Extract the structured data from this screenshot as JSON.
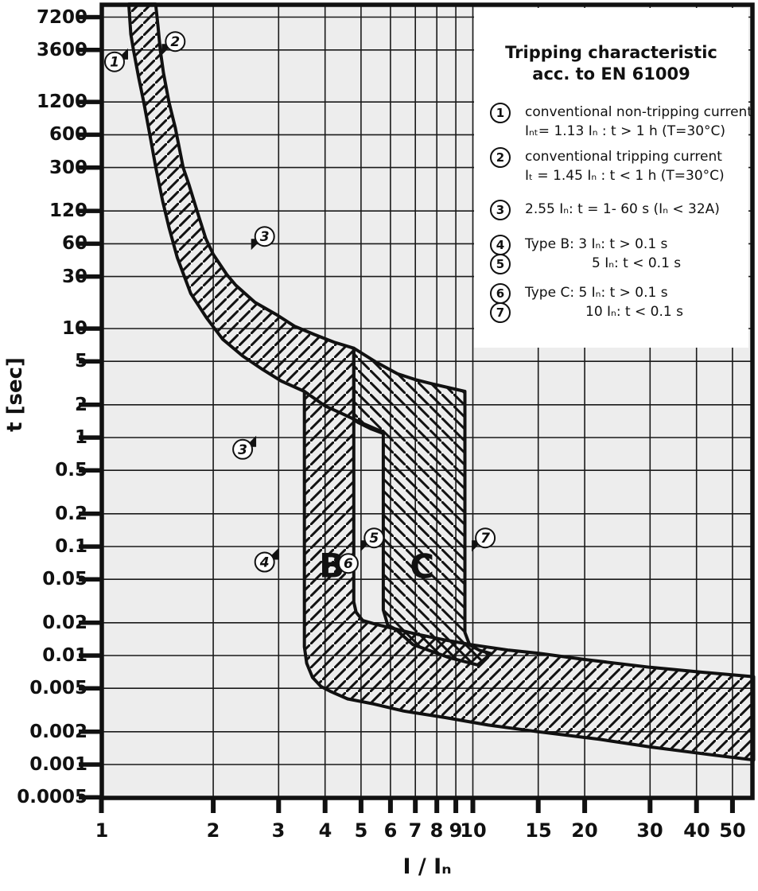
{
  "page": {
    "background": "#ffffff"
  },
  "axes": {
    "x_title": "I / Iₙ",
    "y_title": "t [sec]"
  },
  "legend": {
    "title_line1": "Tripping characteristic",
    "title_line2": "acc. to EN 61009",
    "items": [
      {
        "num": "1",
        "lines": [
          "conventional non-tripping current",
          "Iₙₜ= 1.13 Iₙ : t > 1 h   (T=30°C)"
        ]
      },
      {
        "num": "2",
        "lines": [
          "conventional tripping current",
          "Iₜ = 1.45 Iₙ : t < 1 h   (T=30°C)"
        ]
      },
      {
        "num": "3",
        "lines": [
          "2.55 Iₙ: t = 1- 60 s (Iₙ < 32A)"
        ]
      },
      {
        "num": "4",
        "lines": [
          "Type B: 3 Iₙ: t > 0.1 s"
        ]
      },
      {
        "num": "5",
        "lines": [
          "5 Iₙ: t < 0.1 s"
        ]
      },
      {
        "num": "6",
        "lines": [
          "Type C: 5 Iₙ: t > 0.1 s"
        ]
      },
      {
        "num": "7",
        "lines": [
          "10 Iₙ: t < 0.1 s"
        ]
      }
    ]
  },
  "chart_data": {
    "type": "area",
    "title": "Tripping characteristic acc. to EN 61009",
    "xlabel": "I / Iₙ",
    "ylabel": "t [sec]",
    "x_scale": "log",
    "y_scale": "log",
    "xlim": [
      1,
      57
    ],
    "ylim": [
      0.00044,
      9500
    ],
    "grid": true,
    "plot_bg": "#ededed",
    "grid_color": "#1a1a1a",
    "ink": "#111111",
    "x_ticks": [
      1,
      2,
      3,
      4,
      5,
      6,
      7,
      8,
      9,
      10,
      15,
      20,
      30,
      40,
      50
    ],
    "x_tick_labels": [
      "1",
      "2",
      "3",
      "4",
      "5",
      "6",
      "7",
      "8",
      "9",
      "10",
      "15",
      "20",
      "30",
      "40",
      "50"
    ],
    "y_ticks": [
      7200,
      3600,
      1200,
      600,
      300,
      120,
      60,
      30,
      10,
      5,
      2,
      1,
      0.5,
      0.2,
      0.1,
      0.05,
      0.02,
      0.01,
      0.005,
      0.002,
      0.001,
      0.0005
    ],
    "y_tick_labels": [
      "7200",
      "3600",
      "1200",
      "600",
      "300",
      "120",
      "60",
      "30",
      "10",
      "5",
      "2",
      "1",
      "0.5",
      "0.2",
      "0.1",
      "0.05",
      "0.02",
      "0.01",
      "0.005",
      "0.002",
      "0.001",
      "0.0005"
    ],
    "thresholds": {
      "conventional_non_tripping_current": "1.13 In, t > 1 h",
      "conventional_tripping_current": "1.45 In, t < 1 h",
      "test_point": "2.55 In, t = 1-60 s (In < 32A)",
      "type_B_magnetic_range_In": [
        3,
        5
      ],
      "type_C_magnetic_range_In": [
        5,
        10
      ]
    },
    "bands": [
      {
        "name": "thermal-and-type-B",
        "hatch": "/",
        "outline": [
          [
            1.185,
            9500
          ],
          [
            1.2,
            5000
          ],
          [
            1.22,
            3600
          ],
          [
            1.26,
            2000
          ],
          [
            1.3,
            1200
          ],
          [
            1.35,
            600
          ],
          [
            1.4,
            305
          ],
          [
            1.46,
            150
          ],
          [
            1.52,
            85
          ],
          [
            1.6,
            45
          ],
          [
            1.74,
            21
          ],
          [
            1.92,
            12.5
          ],
          [
            2.12,
            8.0
          ],
          [
            2.4,
            5.6
          ],
          [
            2.72,
            4.2
          ],
          [
            3.05,
            3.3
          ],
          [
            3.52,
            2.65
          ],
          [
            3.52,
            0.012
          ],
          [
            3.57,
            0.0085
          ],
          [
            3.7,
            0.0063
          ],
          [
            3.9,
            0.0052
          ],
          [
            4.13,
            0.0047
          ],
          [
            4.6,
            0.004
          ],
          [
            5.4,
            0.0036
          ],
          [
            6.5,
            0.0031
          ],
          [
            8.4,
            0.0027
          ],
          [
            11.0,
            0.0023
          ],
          [
            15.0,
            0.002
          ],
          [
            22.0,
            0.0017
          ],
          [
            30.0,
            0.00145
          ],
          [
            42.0,
            0.00125
          ],
          [
            57.0,
            0.0011
          ],
          [
            57.0,
            0.0064
          ],
          [
            42.0,
            0.007
          ],
          [
            30.0,
            0.0078
          ],
          [
            20.0,
            0.0092
          ],
          [
            15.0,
            0.0105
          ],
          [
            12.5,
            0.0112
          ],
          [
            10.0,
            0.0125
          ],
          [
            8.4,
            0.0139
          ],
          [
            7.0,
            0.0158
          ],
          [
            6.2,
            0.0175
          ],
          [
            5.5,
            0.0193
          ],
          [
            5.05,
            0.021
          ],
          [
            4.85,
            0.025
          ],
          [
            4.78,
            0.031
          ],
          [
            4.78,
            6.6
          ],
          [
            4.23,
            7.5
          ],
          [
            3.75,
            8.8
          ],
          [
            3.31,
            10.5
          ],
          [
            2.95,
            13.5
          ],
          [
            2.59,
            17.4
          ],
          [
            2.3,
            25
          ],
          [
            2.18,
            31
          ],
          [
            2.0,
            48
          ],
          [
            1.91,
            67
          ],
          [
            1.8,
            127
          ],
          [
            1.72,
            210
          ],
          [
            1.66,
            300
          ],
          [
            1.58,
            700
          ],
          [
            1.52,
            1200
          ],
          [
            1.47,
            2200
          ],
          [
            1.44,
            3600
          ],
          [
            1.42,
            6000
          ],
          [
            1.4,
            9500
          ]
        ]
      },
      {
        "name": "type-C",
        "hatch": "\\",
        "outline": [
          [
            4.78,
            6.6
          ],
          [
            5.5,
            4.9
          ],
          [
            6.27,
            3.84
          ],
          [
            7.0,
            3.4
          ],
          [
            7.8,
            3.1
          ],
          [
            9.52,
            2.65
          ],
          [
            9.52,
            0.0163
          ],
          [
            9.8,
            0.0125
          ],
          [
            10.4,
            0.0112
          ],
          [
            11.2,
            0.0104
          ],
          [
            10.3,
            0.0082
          ],
          [
            8.6,
            0.0096
          ],
          [
            6.9,
            0.0126
          ],
          [
            6.2,
            0.0174
          ],
          [
            5.9,
            0.019
          ],
          [
            5.74,
            0.0262
          ],
          [
            5.74,
            1.09
          ],
          [
            5.3,
            1.21
          ],
          [
            4.9,
            1.38
          ],
          [
            4.78,
            1.45
          ]
        ]
      }
    ],
    "overlay_curves": [
      {
        "name": "non-tripping-limit-extension",
        "points": [
          [
            3.52,
            2.65
          ],
          [
            4.0,
            1.95
          ],
          [
            4.44,
            1.66
          ],
          [
            5.1,
            1.33
          ],
          [
            5.74,
            1.12
          ]
        ]
      }
    ],
    "markers": [
      {
        "num": "1",
        "I": 1.085,
        "t": 2800,
        "pointer": "ne"
      },
      {
        "num": "2",
        "I": 1.58,
        "t": 4300,
        "pointer": "sw"
      },
      {
        "num": "3",
        "I": 2.75,
        "t": 70,
        "pointer": "sw"
      },
      {
        "num": "3",
        "I": 2.4,
        "t": 0.78,
        "pointer": "ne"
      },
      {
        "num": "4",
        "I": 2.75,
        "t": 0.072,
        "pointer": "ne"
      },
      {
        "num": "5",
        "I": 5.42,
        "t": 0.12,
        "pointer": "sw"
      },
      {
        "num": "6",
        "I": 4.62,
        "t": 0.07,
        "pointer": "none"
      },
      {
        "num": "7",
        "I": 10.8,
        "t": 0.12,
        "pointer": "sw"
      }
    ],
    "region_labels": [
      {
        "text": "B",
        "I": 4.17,
        "t": 0.066
      },
      {
        "text": "C",
        "I": 7.3,
        "t": 0.065
      }
    ]
  }
}
